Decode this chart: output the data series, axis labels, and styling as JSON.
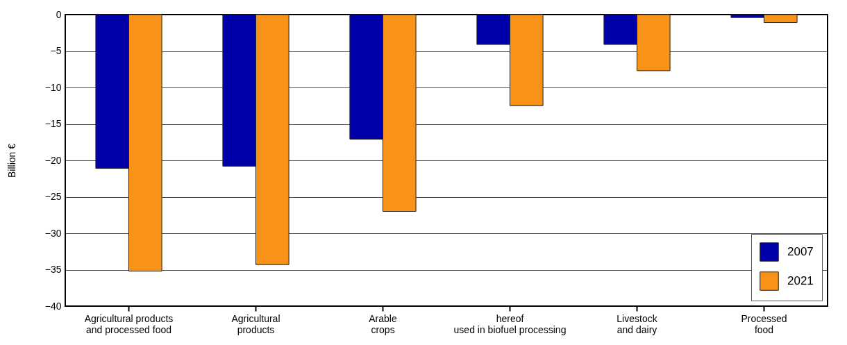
{
  "chart_data": {
    "type": "bar",
    "ylabel": "Billion €",
    "categories": [
      "Agricultural products\nand processed food",
      "Agricultural\nproducts",
      "Arable\ncrops",
      "hereof\nused in biofuel processing",
      "Livestock\nand dairy",
      "Processed\nfood"
    ],
    "series": [
      {
        "name": "2007",
        "color": "#0000aa",
        "values": [
          -21.1,
          -20.8,
          -17.1,
          -4.1,
          -4.1,
          -0.4
        ]
      },
      {
        "name": "2021",
        "color": "#f89218",
        "values": [
          -35.2,
          -34.3,
          -27.0,
          -12.5,
          -7.7,
          -1.1
        ]
      }
    ],
    "ylim": [
      -40,
      0
    ],
    "yticks": [
      -40,
      -35,
      -30,
      -25,
      -20,
      -15,
      -10,
      -5,
      0
    ],
    "grid": "y",
    "legend": "bottom right"
  }
}
